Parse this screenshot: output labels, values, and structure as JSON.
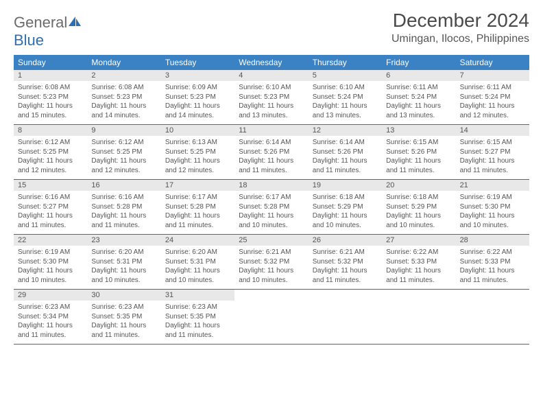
{
  "logo": {
    "text1": "General",
    "text2": "Blue"
  },
  "title": "December 2024",
  "location": "Umingan, Ilocos, Philippines",
  "colors": {
    "header_bg": "#3b82c4",
    "header_text": "#ffffff",
    "daynum_bg": "#e8e8e8",
    "border": "#2c6fb3",
    "body_text": "#555555",
    "logo_gray": "#6b6b6b",
    "logo_blue": "#2c6fb3"
  },
  "day_headers": [
    "Sunday",
    "Monday",
    "Tuesday",
    "Wednesday",
    "Thursday",
    "Friday",
    "Saturday"
  ],
  "weeks": [
    [
      {
        "n": "1",
        "sr": "6:08 AM",
        "ss": "5:23 PM",
        "dl": "11 hours and 15 minutes."
      },
      {
        "n": "2",
        "sr": "6:08 AM",
        "ss": "5:23 PM",
        "dl": "11 hours and 14 minutes."
      },
      {
        "n": "3",
        "sr": "6:09 AM",
        "ss": "5:23 PM",
        "dl": "11 hours and 14 minutes."
      },
      {
        "n": "4",
        "sr": "6:10 AM",
        "ss": "5:23 PM",
        "dl": "11 hours and 13 minutes."
      },
      {
        "n": "5",
        "sr": "6:10 AM",
        "ss": "5:24 PM",
        "dl": "11 hours and 13 minutes."
      },
      {
        "n": "6",
        "sr": "6:11 AM",
        "ss": "5:24 PM",
        "dl": "11 hours and 13 minutes."
      },
      {
        "n": "7",
        "sr": "6:11 AM",
        "ss": "5:24 PM",
        "dl": "11 hours and 12 minutes."
      }
    ],
    [
      {
        "n": "8",
        "sr": "6:12 AM",
        "ss": "5:25 PM",
        "dl": "11 hours and 12 minutes."
      },
      {
        "n": "9",
        "sr": "6:12 AM",
        "ss": "5:25 PM",
        "dl": "11 hours and 12 minutes."
      },
      {
        "n": "10",
        "sr": "6:13 AM",
        "ss": "5:25 PM",
        "dl": "11 hours and 12 minutes."
      },
      {
        "n": "11",
        "sr": "6:14 AM",
        "ss": "5:26 PM",
        "dl": "11 hours and 11 minutes."
      },
      {
        "n": "12",
        "sr": "6:14 AM",
        "ss": "5:26 PM",
        "dl": "11 hours and 11 minutes."
      },
      {
        "n": "13",
        "sr": "6:15 AM",
        "ss": "5:26 PM",
        "dl": "11 hours and 11 minutes."
      },
      {
        "n": "14",
        "sr": "6:15 AM",
        "ss": "5:27 PM",
        "dl": "11 hours and 11 minutes."
      }
    ],
    [
      {
        "n": "15",
        "sr": "6:16 AM",
        "ss": "5:27 PM",
        "dl": "11 hours and 11 minutes."
      },
      {
        "n": "16",
        "sr": "6:16 AM",
        "ss": "5:28 PM",
        "dl": "11 hours and 11 minutes."
      },
      {
        "n": "17",
        "sr": "6:17 AM",
        "ss": "5:28 PM",
        "dl": "11 hours and 11 minutes."
      },
      {
        "n": "18",
        "sr": "6:17 AM",
        "ss": "5:28 PM",
        "dl": "11 hours and 10 minutes."
      },
      {
        "n": "19",
        "sr": "6:18 AM",
        "ss": "5:29 PM",
        "dl": "11 hours and 10 minutes."
      },
      {
        "n": "20",
        "sr": "6:18 AM",
        "ss": "5:29 PM",
        "dl": "11 hours and 10 minutes."
      },
      {
        "n": "21",
        "sr": "6:19 AM",
        "ss": "5:30 PM",
        "dl": "11 hours and 10 minutes."
      }
    ],
    [
      {
        "n": "22",
        "sr": "6:19 AM",
        "ss": "5:30 PM",
        "dl": "11 hours and 10 minutes."
      },
      {
        "n": "23",
        "sr": "6:20 AM",
        "ss": "5:31 PM",
        "dl": "11 hours and 10 minutes."
      },
      {
        "n": "24",
        "sr": "6:20 AM",
        "ss": "5:31 PM",
        "dl": "11 hours and 10 minutes."
      },
      {
        "n": "25",
        "sr": "6:21 AM",
        "ss": "5:32 PM",
        "dl": "11 hours and 10 minutes."
      },
      {
        "n": "26",
        "sr": "6:21 AM",
        "ss": "5:32 PM",
        "dl": "11 hours and 11 minutes."
      },
      {
        "n": "27",
        "sr": "6:22 AM",
        "ss": "5:33 PM",
        "dl": "11 hours and 11 minutes."
      },
      {
        "n": "28",
        "sr": "6:22 AM",
        "ss": "5:33 PM",
        "dl": "11 hours and 11 minutes."
      }
    ],
    [
      {
        "n": "29",
        "sr": "6:23 AM",
        "ss": "5:34 PM",
        "dl": "11 hours and 11 minutes."
      },
      {
        "n": "30",
        "sr": "6:23 AM",
        "ss": "5:35 PM",
        "dl": "11 hours and 11 minutes."
      },
      {
        "n": "31",
        "sr": "6:23 AM",
        "ss": "5:35 PM",
        "dl": "11 hours and 11 minutes."
      },
      null,
      null,
      null,
      null
    ]
  ],
  "labels": {
    "sunrise": "Sunrise:",
    "sunset": "Sunset:",
    "daylight": "Daylight:"
  }
}
